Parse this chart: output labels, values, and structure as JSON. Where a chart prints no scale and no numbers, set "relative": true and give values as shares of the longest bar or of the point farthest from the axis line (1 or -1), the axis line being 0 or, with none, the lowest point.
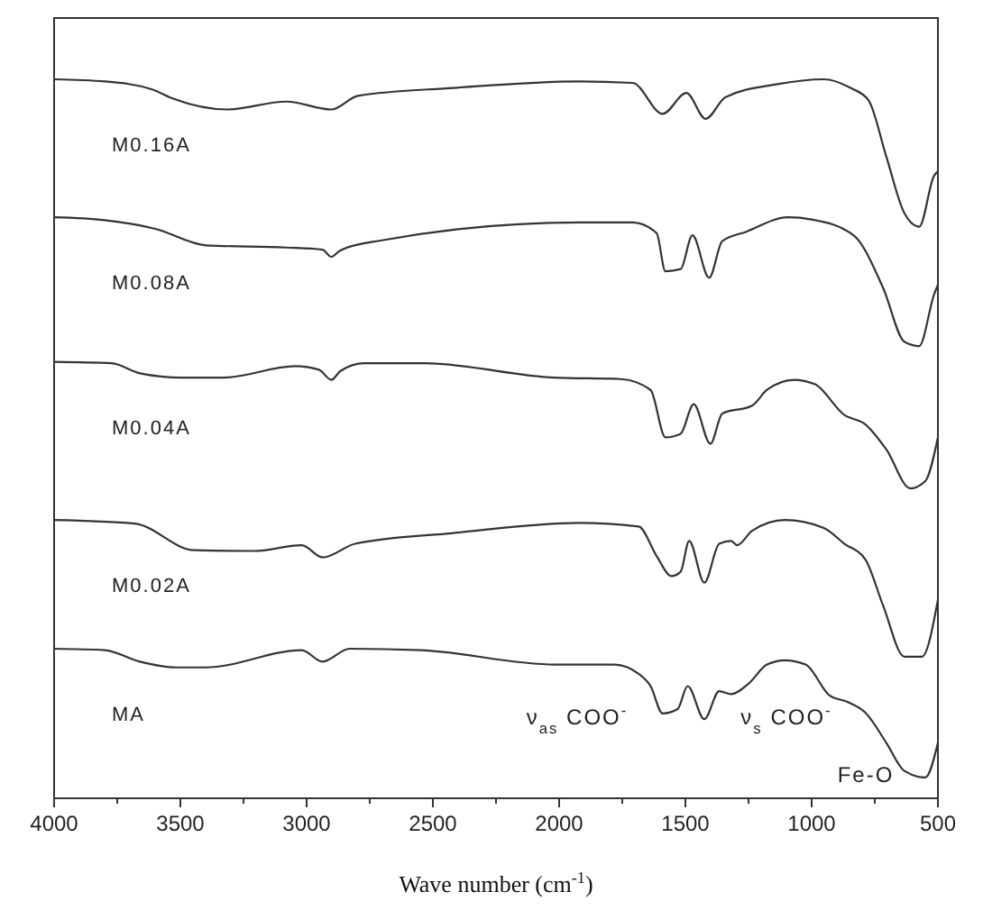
{
  "chart_data": {
    "type": "line",
    "relative": true,
    "xlabel": "Wave number (cm$^{-1}$)",
    "xlim": [
      4000,
      500
    ],
    "xticks": [
      4000,
      {
        "value": 3750,
        "label": null
      },
      3500,
      {
        "value": 3250,
        "label": null
      },
      3000,
      {
        "value": 2750,
        "label": null
      },
      2500,
      {
        "value": 2250,
        "label": null
      },
      2000,
      {
        "value": 1750,
        "label": null
      },
      1500,
      {
        "value": 1250,
        "label": null
      },
      1000,
      {
        "value": 750,
        "label": null
      },
      500
    ],
    "grid": false,
    "marker": "none",
    "line_style": "solid",
    "annotations": [
      "ν$_{as}$ COO$^{-}$",
      "ν$_{s}$ COO$^{-}$",
      "Fe-O"
    ],
    "series": [
      {
        "name": "M0.16A",
        "color": "#333333",
        "x": [
          4000,
          3800,
          3612,
          3528,
          3316,
          3080,
          2902,
          2797,
          2417,
          1921,
          1709,
          1590,
          1496,
          1420,
          1342,
          1141,
          952,
          846,
          775,
          704,
          633,
          574,
          515,
          500
        ],
        "values": [
          1.0,
          0.997,
          0.986,
          0.973,
          0.958,
          0.969,
          0.958,
          0.977,
          0.988,
          0.997,
          0.995,
          0.952,
          0.981,
          0.945,
          0.975,
          0.993,
          1.0,
          0.988,
          0.971,
          0.892,
          0.814,
          0.795,
          0.866,
          0.872
        ]
      },
      {
        "name": "M0.08A",
        "color": "#333333",
        "x": [
          4000,
          3800,
          3599,
          3398,
          3080,
          2937,
          2902,
          2867,
          2702,
          1921,
          1709,
          1614,
          1579,
          1519,
          1472,
          1406,
          1354,
          1259,
          1094,
          1000,
          834,
          716,
          633,
          574,
          515,
          500
        ],
        "values": [
          0.808,
          0.804,
          0.792,
          0.769,
          0.766,
          0.763,
          0.753,
          0.762,
          0.776,
          0.801,
          0.801,
          0.786,
          0.733,
          0.736,
          0.783,
          0.724,
          0.775,
          0.788,
          0.808,
          0.805,
          0.783,
          0.709,
          0.635,
          0.629,
          0.701,
          0.714
        ]
      },
      {
        "name": "M0.04A",
        "color": "#333333",
        "x": [
          4000,
          3772,
          3660,
          3494,
          3329,
          3045,
          2951,
          2902,
          2867,
          2772,
          2536,
          2016,
          1756,
          1638,
          1579,
          1519,
          1467,
          1401,
          1354,
          1236,
          1177,
          1070,
          988,
          870,
          787,
          704,
          609,
          550,
          500
        ],
        "values": [
          0.607,
          0.605,
          0.591,
          0.585,
          0.585,
          0.601,
          0.596,
          0.582,
          0.594,
          0.605,
          0.605,
          0.585,
          0.583,
          0.568,
          0.502,
          0.507,
          0.548,
          0.493,
          0.535,
          0.546,
          0.568,
          0.582,
          0.576,
          0.533,
          0.52,
          0.485,
          0.431,
          0.441,
          0.502
        ]
      },
      {
        "name": "M0.02A",
        "color": "#333333",
        "x": [
          4000,
          3681,
          3445,
          3209,
          3019,
          2937,
          2808,
          2417,
          1921,
          1685,
          1614,
          1555,
          1519,
          1485,
          1425,
          1366,
          1319,
          1295,
          1236,
          1106,
          952,
          870,
          787,
          716,
          633,
          563,
          500
        ],
        "values": [
          0.387,
          0.382,
          0.345,
          0.344,
          0.352,
          0.335,
          0.354,
          0.369,
          0.383,
          0.378,
          0.337,
          0.309,
          0.315,
          0.358,
          0.3,
          0.354,
          0.358,
          0.352,
          0.372,
          0.387,
          0.376,
          0.354,
          0.332,
          0.267,
          0.197,
          0.197,
          0.276
        ]
      },
      {
        "name": "MA",
        "color": "#333333",
        "x": [
          4000,
          3800,
          3660,
          3518,
          3400,
          3019,
          2937,
          2830,
          2547,
          2016,
          1780,
          1685,
          1638,
          1590,
          1531,
          1491,
          1425,
          1366,
          1319,
          1248,
          1177,
          1106,
          1024,
          929,
          858,
          787,
          704,
          633,
          550,
          500
        ],
        "values": [
          0.208,
          0.206,
          0.19,
          0.182,
          0.182,
          0.206,
          0.19,
          0.208,
          0.206,
          0.186,
          0.186,
          0.173,
          0.156,
          0.118,
          0.124,
          0.156,
          0.11,
          0.149,
          0.145,
          0.16,
          0.186,
          0.192,
          0.186,
          0.143,
          0.134,
          0.119,
          0.077,
          0.038,
          0.029,
          0.077
        ]
      }
    ]
  }
}
